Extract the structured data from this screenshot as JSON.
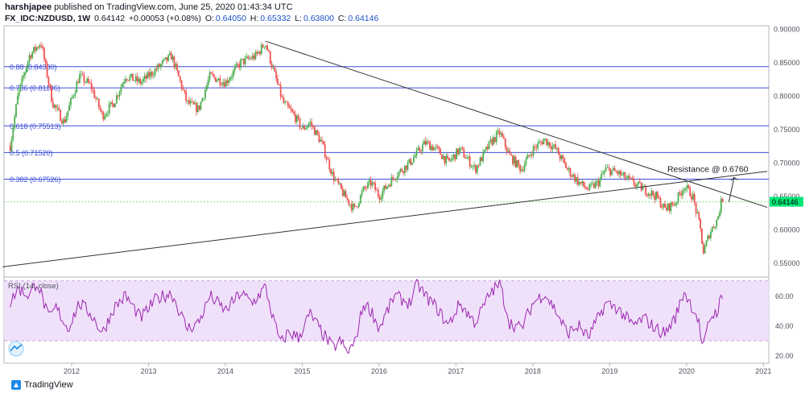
{
  "header": {
    "author": "harshjapee",
    "published_text": "published on TradingView.com, June 25, 2020 01:43:34 UTC",
    "symbol": "FX_IDC:NZDUSD, 1W",
    "last": "0.64142",
    "change": "+0.00053 (+0.08%)",
    "o_label": "O:",
    "o_value": "0.64050",
    "h_label": "H:",
    "h_value": "0.65332",
    "l_label": "L:",
    "l_value": "0.63800",
    "c_label": "C:",
    "c_value": "0.64146"
  },
  "footer": {
    "brand": "TradingView"
  },
  "colors": {
    "up": "#26a69a",
    "up_green": "#4caf50",
    "down": "#ef5350",
    "fib": "#3d4fd8",
    "trend": "#333333",
    "rsi": "#9c27b0",
    "rsi_band": "#f0e1fa",
    "price_tag": "#00e676",
    "price_line": "#8fdc8f"
  },
  "chart_data": [
    {
      "type": "candlestick",
      "symbol": "FX_IDC:NZDUSD",
      "interval": "1W",
      "x": [
        "2012",
        "2013",
        "2014",
        "2015",
        "2016",
        "2017",
        "2018",
        "2019",
        "2020",
        "2021"
      ],
      "ylim": [
        0.53,
        0.905
      ],
      "y_ticks": [
        "0.90000",
        "0.85000",
        "0.80000",
        "0.75000",
        "0.70000",
        "0.65000",
        "0.60000",
        "0.55000"
      ],
      "last_price_label": "0.64146",
      "last_price": 0.64146,
      "series_anchors": [
        [
          2011.2,
          0.725
        ],
        [
          2011.3,
          0.8
        ],
        [
          2011.45,
          0.86
        ],
        [
          2011.6,
          0.88
        ],
        [
          2011.75,
          0.79
        ],
        [
          2011.9,
          0.76
        ],
        [
          2012.1,
          0.83
        ],
        [
          2012.25,
          0.815
        ],
        [
          2012.4,
          0.77
        ],
        [
          2012.55,
          0.79
        ],
        [
          2012.7,
          0.83
        ],
        [
          2012.9,
          0.82
        ],
        [
          2013.1,
          0.84
        ],
        [
          2013.3,
          0.86
        ],
        [
          2013.5,
          0.79
        ],
        [
          2013.65,
          0.78
        ],
        [
          2013.8,
          0.83
        ],
        [
          2014.0,
          0.82
        ],
        [
          2014.2,
          0.85
        ],
        [
          2014.4,
          0.86
        ],
        [
          2014.52,
          0.88
        ],
        [
          2014.62,
          0.84
        ],
        [
          2014.75,
          0.79
        ],
        [
          2014.9,
          0.77
        ],
        [
          2015.0,
          0.75
        ],
        [
          2015.1,
          0.76
        ],
        [
          2015.25,
          0.73
        ],
        [
          2015.4,
          0.68
        ],
        [
          2015.55,
          0.65
        ],
        [
          2015.68,
          0.63
        ],
        [
          2015.8,
          0.66
        ],
        [
          2015.9,
          0.67
        ],
        [
          2016.0,
          0.65
        ],
        [
          2016.2,
          0.68
        ],
        [
          2016.4,
          0.7
        ],
        [
          2016.6,
          0.73
        ],
        [
          2016.75,
          0.72
        ],
        [
          2016.9,
          0.7
        ],
        [
          2017.05,
          0.72
        ],
        [
          2017.25,
          0.69
        ],
        [
          2017.45,
          0.73
        ],
        [
          2017.57,
          0.745
        ],
        [
          2017.7,
          0.71
        ],
        [
          2017.85,
          0.69
        ],
        [
          2018.0,
          0.72
        ],
        [
          2018.15,
          0.735
        ],
        [
          2018.3,
          0.72
        ],
        [
          2018.45,
          0.69
        ],
        [
          2018.6,
          0.67
        ],
        [
          2018.72,
          0.66
        ],
        [
          2018.85,
          0.67
        ],
        [
          2018.95,
          0.69
        ],
        [
          2019.1,
          0.685
        ],
        [
          2019.3,
          0.67
        ],
        [
          2019.45,
          0.66
        ],
        [
          2019.6,
          0.65
        ],
        [
          2019.72,
          0.63
        ],
        [
          2019.85,
          0.64
        ],
        [
          2019.97,
          0.665
        ],
        [
          2020.08,
          0.65
        ],
        [
          2020.18,
          0.6
        ],
        [
          2020.22,
          0.565
        ],
        [
          2020.3,
          0.595
        ],
        [
          2020.4,
          0.615
        ],
        [
          2020.45,
          0.64
        ],
        [
          2020.48,
          0.641
        ]
      ],
      "fib_levels": [
        {
          "label": "0.88 (0.84380)",
          "value": 0.8438
        },
        {
          "label": "0.786 (0.81196)",
          "value": 0.81196
        },
        {
          "label": "0.618 (0.75513)",
          "value": 0.75513
        },
        {
          "label": "0.5 (0.71520)",
          "value": 0.7152
        },
        {
          "label": "0.382 (0.67526)",
          "value": 0.67526
        }
      ],
      "trendlines": [
        {
          "from": [
            2014.52,
            0.882
          ],
          "to": [
            2021.05,
            0.633
          ]
        },
        {
          "from": [
            2011.1,
            0.544
          ],
          "to": [
            2021.05,
            0.687
          ]
        }
      ],
      "annotation": {
        "text": "Resistance @ 0.6760",
        "x": 2019.75,
        "y": 0.686
      },
      "projection_arrow": {
        "from": [
          2020.55,
          0.641
        ],
        "to": [
          2020.62,
          0.678
        ]
      }
    },
    {
      "type": "line",
      "name": "RSI (14, close)",
      "ylim": [
        15,
        72
      ],
      "y_ticks": [
        "60.00",
        "40.00",
        "20.00"
      ],
      "band": [
        30,
        70
      ],
      "series_anchors": [
        [
          2011.2,
          55
        ],
        [
          2011.3,
          65
        ],
        [
          2011.45,
          60
        ],
        [
          2011.55,
          70
        ],
        [
          2011.7,
          45
        ],
        [
          2011.8,
          52
        ],
        [
          2011.95,
          38
        ],
        [
          2012.1,
          55
        ],
        [
          2012.25,
          48
        ],
        [
          2012.4,
          35
        ],
        [
          2012.55,
          52
        ],
        [
          2012.7,
          60
        ],
        [
          2012.9,
          45
        ],
        [
          2013.1,
          58
        ],
        [
          2013.3,
          62
        ],
        [
          2013.5,
          38
        ],
        [
          2013.65,
          42
        ],
        [
          2013.8,
          60
        ],
        [
          2014.0,
          50
        ],
        [
          2014.2,
          62
        ],
        [
          2014.35,
          55
        ],
        [
          2014.52,
          66
        ],
        [
          2014.62,
          45
        ],
        [
          2014.72,
          28
        ],
        [
          2014.82,
          36
        ],
        [
          2014.95,
          32
        ],
        [
          2015.1,
          48
        ],
        [
          2015.25,
          36
        ],
        [
          2015.4,
          25
        ],
        [
          2015.5,
          30
        ],
        [
          2015.58,
          22
        ],
        [
          2015.68,
          28
        ],
        [
          2015.8,
          55
        ],
        [
          2015.9,
          50
        ],
        [
          2016.0,
          38
        ],
        [
          2016.2,
          60
        ],
        [
          2016.4,
          55
        ],
        [
          2016.5,
          68
        ],
        [
          2016.6,
          60
        ],
        [
          2016.75,
          52
        ],
        [
          2016.9,
          40
        ],
        [
          2017.05,
          55
        ],
        [
          2017.25,
          42
        ],
        [
          2017.45,
          62
        ],
        [
          2017.57,
          68
        ],
        [
          2017.7,
          42
        ],
        [
          2017.85,
          38
        ],
        [
          2018.0,
          55
        ],
        [
          2018.15,
          62
        ],
        [
          2018.3,
          50
        ],
        [
          2018.45,
          35
        ],
        [
          2018.6,
          40
        ],
        [
          2018.72,
          32
        ],
        [
          2018.85,
          45
        ],
        [
          2018.95,
          55
        ],
        [
          2019.1,
          52
        ],
        [
          2019.3,
          40
        ],
        [
          2019.45,
          45
        ],
        [
          2019.6,
          38
        ],
        [
          2019.72,
          35
        ],
        [
          2019.85,
          45
        ],
        [
          2019.97,
          63
        ],
        [
          2020.08,
          52
        ],
        [
          2020.15,
          45
        ],
        [
          2020.2,
          28
        ],
        [
          2020.22,
          25
        ],
        [
          2020.3,
          45
        ],
        [
          2020.4,
          50
        ],
        [
          2020.45,
          58
        ],
        [
          2020.48,
          55
        ]
      ]
    }
  ]
}
